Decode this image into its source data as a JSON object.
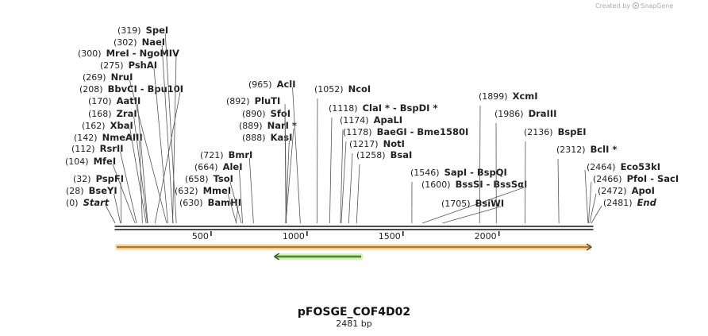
{
  "credit": {
    "prefix": "Created by",
    "brand": "SnapGene"
  },
  "map": {
    "name": "pFOSGE_COF4D02",
    "length_label": "2481 bp",
    "length_bp": 2481,
    "ticks": [
      500,
      1000,
      1500,
      2000
    ],
    "tick_labels": [
      "500",
      "1000",
      "1500",
      "2000"
    ],
    "colors": {
      "backbone": "#111111",
      "feature_orange": "#f5a13a",
      "feature_orange_glow": "#fbe0b0",
      "feature_green": "#5cbf2a",
      "feature_green_glow": "#d6f0c2",
      "arrow": "#333333"
    },
    "features": [
      {
        "name": "orange-feature",
        "start": 0,
        "end": 2481,
        "strand": "forward",
        "color": "#f5a13a"
      },
      {
        "name": "green-feature",
        "start": 830,
        "end": 1290,
        "strand": "reverse",
        "color": "#5cbf2a"
      }
    ],
    "sites": [
      {
        "pos": "(0)",
        "enzyme": "Start",
        "bp": 0,
        "style": "italic"
      },
      {
        "pos": "(28)",
        "enzyme": "BseYI",
        "bp": 28
      },
      {
        "pos": "(32)",
        "enzyme": "PspFI",
        "bp": 32
      },
      {
        "pos": "(104)",
        "enzyme": "MfeI",
        "bp": 104
      },
      {
        "pos": "(112)",
        "enzyme": "RsrII",
        "bp": 112
      },
      {
        "pos": "(142)",
        "enzyme": "NmeAIII",
        "bp": 142
      },
      {
        "pos": "(162)",
        "enzyme": "XbaI",
        "bp": 162
      },
      {
        "pos": "(168)",
        "enzyme": "ZraI",
        "bp": 168
      },
      {
        "pos": "(170)",
        "enzyme": "AatII",
        "bp": 170
      },
      {
        "pos": "(208)",
        "enzyme": "BbvCI  -  Bpu10I",
        "bp": 208
      },
      {
        "pos": "(269)",
        "enzyme": "NruI",
        "bp": 269
      },
      {
        "pos": "(275)",
        "enzyme": "PshAI",
        "bp": 275
      },
      {
        "pos": "(300)",
        "enzyme": "MreI  -  NgoMIV",
        "bp": 300
      },
      {
        "pos": "(302)",
        "enzyme": "NaeI",
        "bp": 302
      },
      {
        "pos": "(319)",
        "enzyme": "SpeI",
        "bp": 319
      },
      {
        "pos": "(630)",
        "enzyme": "BamHI",
        "bp": 630
      },
      {
        "pos": "(632)",
        "enzyme": "MmeI",
        "bp": 632
      },
      {
        "pos": "(658)",
        "enzyme": "TsoI",
        "bp": 658
      },
      {
        "pos": "(664)",
        "enzyme": "AleI",
        "bp": 664
      },
      {
        "pos": "(721)",
        "enzyme": "BmrI",
        "bp": 721
      },
      {
        "pos": "(888)",
        "enzyme": "KasI",
        "bp": 888
      },
      {
        "pos": "(889)",
        "enzyme": "NarI *",
        "bp": 889
      },
      {
        "pos": "(890)",
        "enzyme": "SfoI",
        "bp": 890
      },
      {
        "pos": "(892)",
        "enzyme": "PluTI",
        "bp": 892
      },
      {
        "pos": "(965)",
        "enzyme": "AclI",
        "bp": 965
      },
      {
        "pos": "(1052)",
        "enzyme": "NcoI",
        "bp": 1052
      },
      {
        "pos": "(1118)",
        "enzyme": "ClaI *  -  BspDI *",
        "bp": 1118
      },
      {
        "pos": "(1174)",
        "enzyme": "ApaLI",
        "bp": 1174
      },
      {
        "pos": "(1178)",
        "enzyme": "BaeGI  -  Bme1580I",
        "bp": 1178
      },
      {
        "pos": "(1217)",
        "enzyme": "NotI",
        "bp": 1217
      },
      {
        "pos": "(1258)",
        "enzyme": "BsaI",
        "bp": 1258
      },
      {
        "pos": "(1546)",
        "enzyme": "SapI  -  BspQI",
        "bp": 1546
      },
      {
        "pos": "(1600)",
        "enzyme": "BssSI  -  BssSαI",
        "bp": 1600
      },
      {
        "pos": "(1705)",
        "enzyme": "BsiWI",
        "bp": 1705
      },
      {
        "pos": "(1899)",
        "enzyme": "XcmI",
        "bp": 1899
      },
      {
        "pos": "(1986)",
        "enzyme": "DraIII",
        "bp": 1986
      },
      {
        "pos": "(2136)",
        "enzyme": "BspEI",
        "bp": 2136
      },
      {
        "pos": "(2312)",
        "enzyme": "BclI *",
        "bp": 2312
      },
      {
        "pos": "(2464)",
        "enzyme": "Eco53kI",
        "bp": 2464
      },
      {
        "pos": "(2466)",
        "enzyme": "PfoI  -  SacI",
        "bp": 2466
      },
      {
        "pos": "(2472)",
        "enzyme": "ApoI",
        "bp": 2472
      },
      {
        "pos": "(2481)",
        "enzyme": "End",
        "bp": 2481,
        "style": "italic"
      }
    ]
  }
}
